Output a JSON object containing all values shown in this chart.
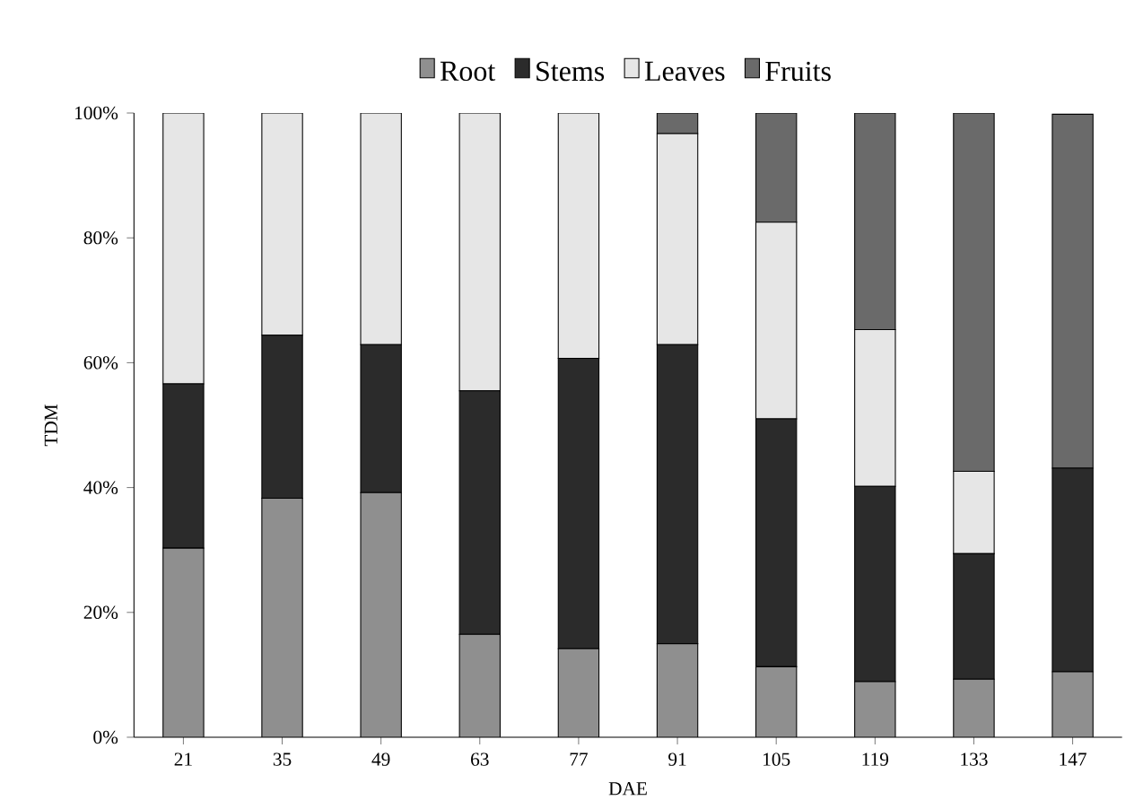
{
  "chart_data": {
    "type": "bar",
    "stacked": true,
    "xlabel": "DAE",
    "ylabel": "TDM",
    "categories": [
      "21",
      "35",
      "49",
      "63",
      "77",
      "91",
      "105",
      "119",
      "133",
      "147"
    ],
    "series": [
      {
        "name": "Root",
        "color": "#8f8f8f",
        "values": [
          30.3,
          38.3,
          39.2,
          16.5,
          14.2,
          15.0,
          11.3,
          8.9,
          9.3,
          10.5
        ]
      },
      {
        "name": "Stems",
        "color": "#2b2b2b",
        "values": [
          26.3,
          26.1,
          23.7,
          39.0,
          46.5,
          47.9,
          39.7,
          31.3,
          20.1,
          32.6
        ]
      },
      {
        "name": "Leaves",
        "color": "#e6e6e6",
        "values": [
          43.4,
          35.6,
          37.1,
          44.5,
          39.3,
          33.8,
          31.5,
          25.1,
          13.2,
          null
        ]
      },
      {
        "name": "Fruits",
        "color": "#6a6a6a",
        "values": [
          0,
          0,
          0,
          0,
          0,
          3.3,
          17.5,
          34.7,
          57.4,
          56.7
        ]
      }
    ],
    "ylim": [
      0,
      100
    ],
    "yticks": [
      {
        "value": 0,
        "label": "0%"
      },
      {
        "value": 20,
        "label": "20%"
      },
      {
        "value": 40,
        "label": "40%"
      },
      {
        "value": 60,
        "label": "60%"
      },
      {
        "value": 80,
        "label": "80%"
      },
      {
        "value": 100,
        "label": "100%"
      }
    ],
    "legend": "top",
    "grid": false
  }
}
